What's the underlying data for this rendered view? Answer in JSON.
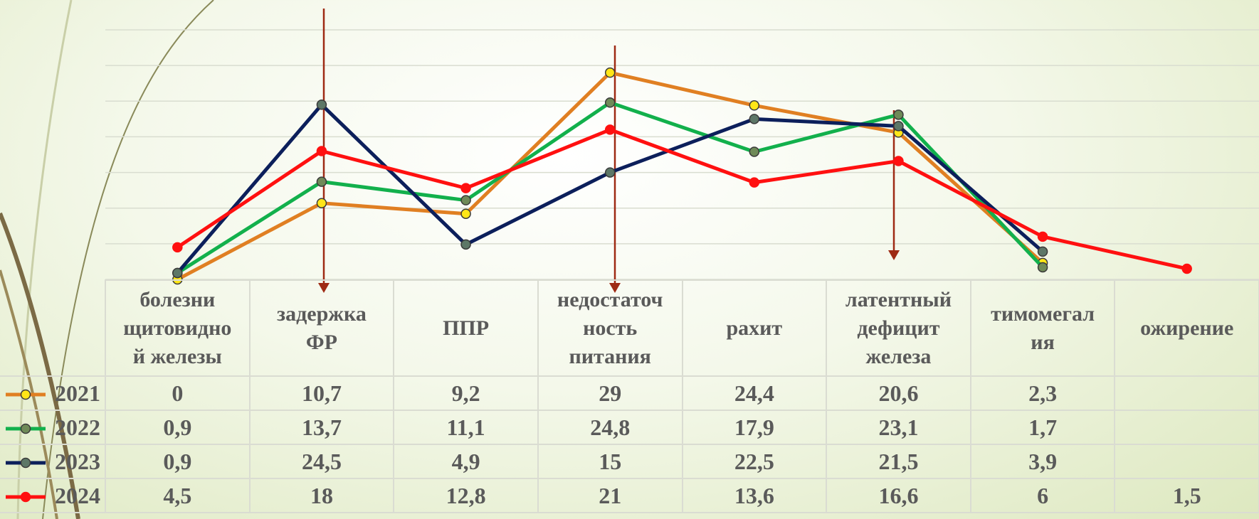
{
  "chart_data": {
    "type": "line",
    "categories": [
      "болезни\nщитовидно\nй железы",
      "задержка\nФР",
      "ППР",
      "недостаточ\nность\nпитания",
      "рахит",
      "латентный\nдефицит\nжелеза",
      "тимомегал\nия",
      "ожирение"
    ],
    "series": [
      {
        "name": "2021",
        "color": "#e07f22",
        "marker_color": "#ffe617",
        "values": [
          0,
          10.7,
          9.2,
          29,
          24.4,
          20.6,
          2.3,
          null
        ],
        "value_labels": [
          "0",
          "10,7",
          "9,2",
          "29",
          "24,4",
          "20,6",
          "2,3",
          null
        ]
      },
      {
        "name": "2022",
        "color": "#12b04c",
        "marker_color": "#6f8a58",
        "values": [
          0.9,
          13.7,
          11.1,
          24.8,
          17.9,
          23.1,
          1.7,
          null
        ],
        "value_labels": [
          "0,9",
          "13,7",
          "11,1",
          "24,8",
          "17,9",
          "23,1",
          "1,7",
          null
        ]
      },
      {
        "name": "2023",
        "color": "#0c1f5b",
        "marker_color": "#5d7767",
        "values": [
          0.9,
          24.5,
          4.9,
          15,
          22.5,
          21.5,
          3.9,
          null
        ],
        "value_labels": [
          "0,9",
          "24,5",
          "4,9",
          "15",
          "22,5",
          "21,5",
          "3,9",
          null
        ]
      },
      {
        "name": "2024",
        "color": "#ff1010",
        "marker_color": "#ff1010",
        "values": [
          4.5,
          18,
          12.8,
          21,
          13.6,
          16.6,
          6,
          1.5
        ],
        "value_labels": [
          "4,5",
          "18",
          "12,8",
          "21",
          "13,6",
          "16,6",
          "6",
          "1,5"
        ]
      }
    ],
    "ylim": [
      0,
      35
    ],
    "yticks": [
      0,
      5,
      10,
      15,
      20,
      25,
      30,
      35
    ],
    "grid": true
  }
}
